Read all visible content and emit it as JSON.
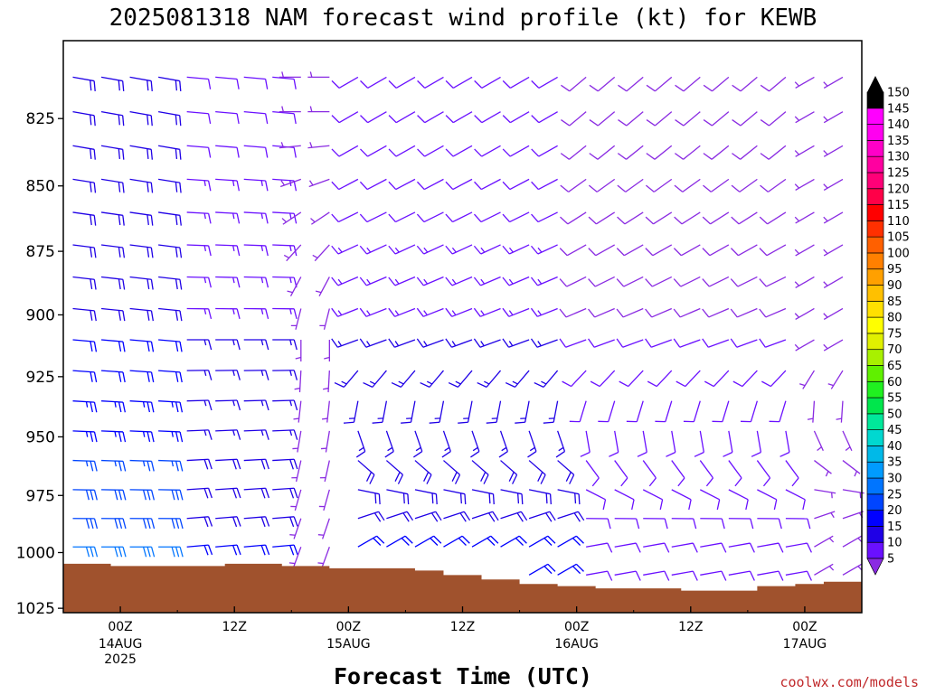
{
  "chart_data": {
    "type": "wind-barb profile",
    "title": "2025081318 NAM forecast wind profile (kt) for KEWB",
    "xlabel": "Forecast Time (UTC)",
    "ylabel": "",
    "x_ticks": [
      {
        "label": "00Z",
        "sub": [
          "14AUG",
          "2025"
        ],
        "hour": 6
      },
      {
        "label": "12Z",
        "sub": [],
        "hour": 18
      },
      {
        "label": "00Z",
        "sub": [
          "15AUG"
        ],
        "hour": 30
      },
      {
        "label": "12Z",
        "sub": [],
        "hour": 42
      },
      {
        "label": "00Z",
        "sub": [
          "16AUG"
        ],
        "hour": 54
      },
      {
        "label": "12Z",
        "sub": [],
        "hour": 66
      },
      {
        "label": "00Z",
        "sub": [
          "17AUG"
        ],
        "hour": 78
      }
    ],
    "xlim_hours": [
      0,
      84
    ],
    "y_ticks": [
      825,
      850,
      875,
      900,
      925,
      950,
      975,
      1000,
      1025
    ],
    "ylim_hPa": [
      1027,
      797
    ],
    "y_scale": "log-pressure",
    "colorbar": {
      "levels": [
        5,
        10,
        15,
        20,
        25,
        30,
        35,
        40,
        45,
        50,
        55,
        60,
        65,
        70,
        75,
        80,
        85,
        90,
        95,
        100,
        105,
        110,
        115,
        120,
        125,
        130,
        135,
        140,
        145,
        150
      ],
      "colors": [
        "#8a2be2",
        "#6a10ff",
        "#1f00e6",
        "#0000ff",
        "#0045ff",
        "#0075ff",
        "#009bff",
        "#00b9e8",
        "#00d8d0",
        "#00e89a",
        "#00e64c",
        "#20f020",
        "#60f000",
        "#a8f000",
        "#e0f000",
        "#ffff00",
        "#ffe000",
        "#ffc000",
        "#ffa000",
        "#ff8000",
        "#ff6000",
        "#ff3000",
        "#ff0000",
        "#ff0048",
        "#ff0078",
        "#ff00a0",
        "#ff00c8",
        "#ff00f0",
        "#ff00ff",
        "#000000"
      ]
    },
    "terrain": {
      "color": "#a0522d",
      "surface_pressure_hPa": [
        [
          0,
          1005
        ],
        [
          5,
          1005
        ],
        [
          5,
          1006
        ],
        [
          10,
          1006
        ],
        [
          17,
          1005
        ],
        [
          23,
          1006
        ],
        [
          28,
          1007
        ],
        [
          35,
          1007
        ],
        [
          37,
          1008
        ],
        [
          40,
          1010
        ],
        [
          44,
          1012
        ],
        [
          48,
          1014
        ],
        [
          52,
          1015
        ],
        [
          56,
          1016
        ],
        [
          60,
          1016
        ],
        [
          65,
          1017
        ],
        [
          69,
          1017
        ],
        [
          73,
          1015
        ],
        [
          77,
          1014
        ],
        [
          80,
          1013
        ],
        [
          84,
          1013
        ]
      ]
    },
    "profiles": [
      {
        "range_hours": [
          0,
          12
        ],
        "low_wind": {
          "speed_kt": 30,
          "dir_deg": 90
        },
        "mid_wind": {
          "speed_kt": 20,
          "dir_deg": 95
        },
        "upper_wind": {
          "speed_kt": 18,
          "dir_deg": 100
        }
      },
      {
        "range_hours": [
          12,
          24
        ],
        "low_wind": {
          "speed_kt": 20,
          "dir_deg": 85
        },
        "mid_wind": {
          "speed_kt": 15,
          "dir_deg": 90
        },
        "upper_wind": {
          "speed_kt": 12,
          "dir_deg": 95
        }
      },
      {
        "range_hours": [
          24,
          30
        ],
        "low_wind": {
          "speed_kt": 5,
          "dir_deg": 200
        },
        "mid_wind": {
          "speed_kt": 5,
          "dir_deg": 180
        },
        "upper_wind": {
          "speed_kt": 5,
          "dir_deg": 270
        }
      },
      {
        "range_hours": [
          30,
          54
        ],
        "low_wind": {
          "speed_kt": 20,
          "dir_deg": 60
        },
        "mid_wind": {
          "speed_kt": 15,
          "dir_deg": 250
        },
        "upper_wind": {
          "speed_kt": 10,
          "dir_deg": 240
        }
      },
      {
        "range_hours": [
          54,
          78
        ],
        "low_wind": {
          "speed_kt": 10,
          "dir_deg": 80
        },
        "mid_wind": {
          "speed_kt": 10,
          "dir_deg": 250
        },
        "upper_wind": {
          "speed_kt": 8,
          "dir_deg": 230
        }
      },
      {
        "range_hours": [
          78,
          84
        ],
        "low_wind": {
          "speed_kt": 5,
          "dir_deg": 60
        },
        "mid_wind": {
          "speed_kt": 5,
          "dir_deg": 240
        },
        "upper_wind": {
          "speed_kt": 5,
          "dir_deg": 240
        }
      }
    ]
  },
  "credit": "coolwx.com/models"
}
